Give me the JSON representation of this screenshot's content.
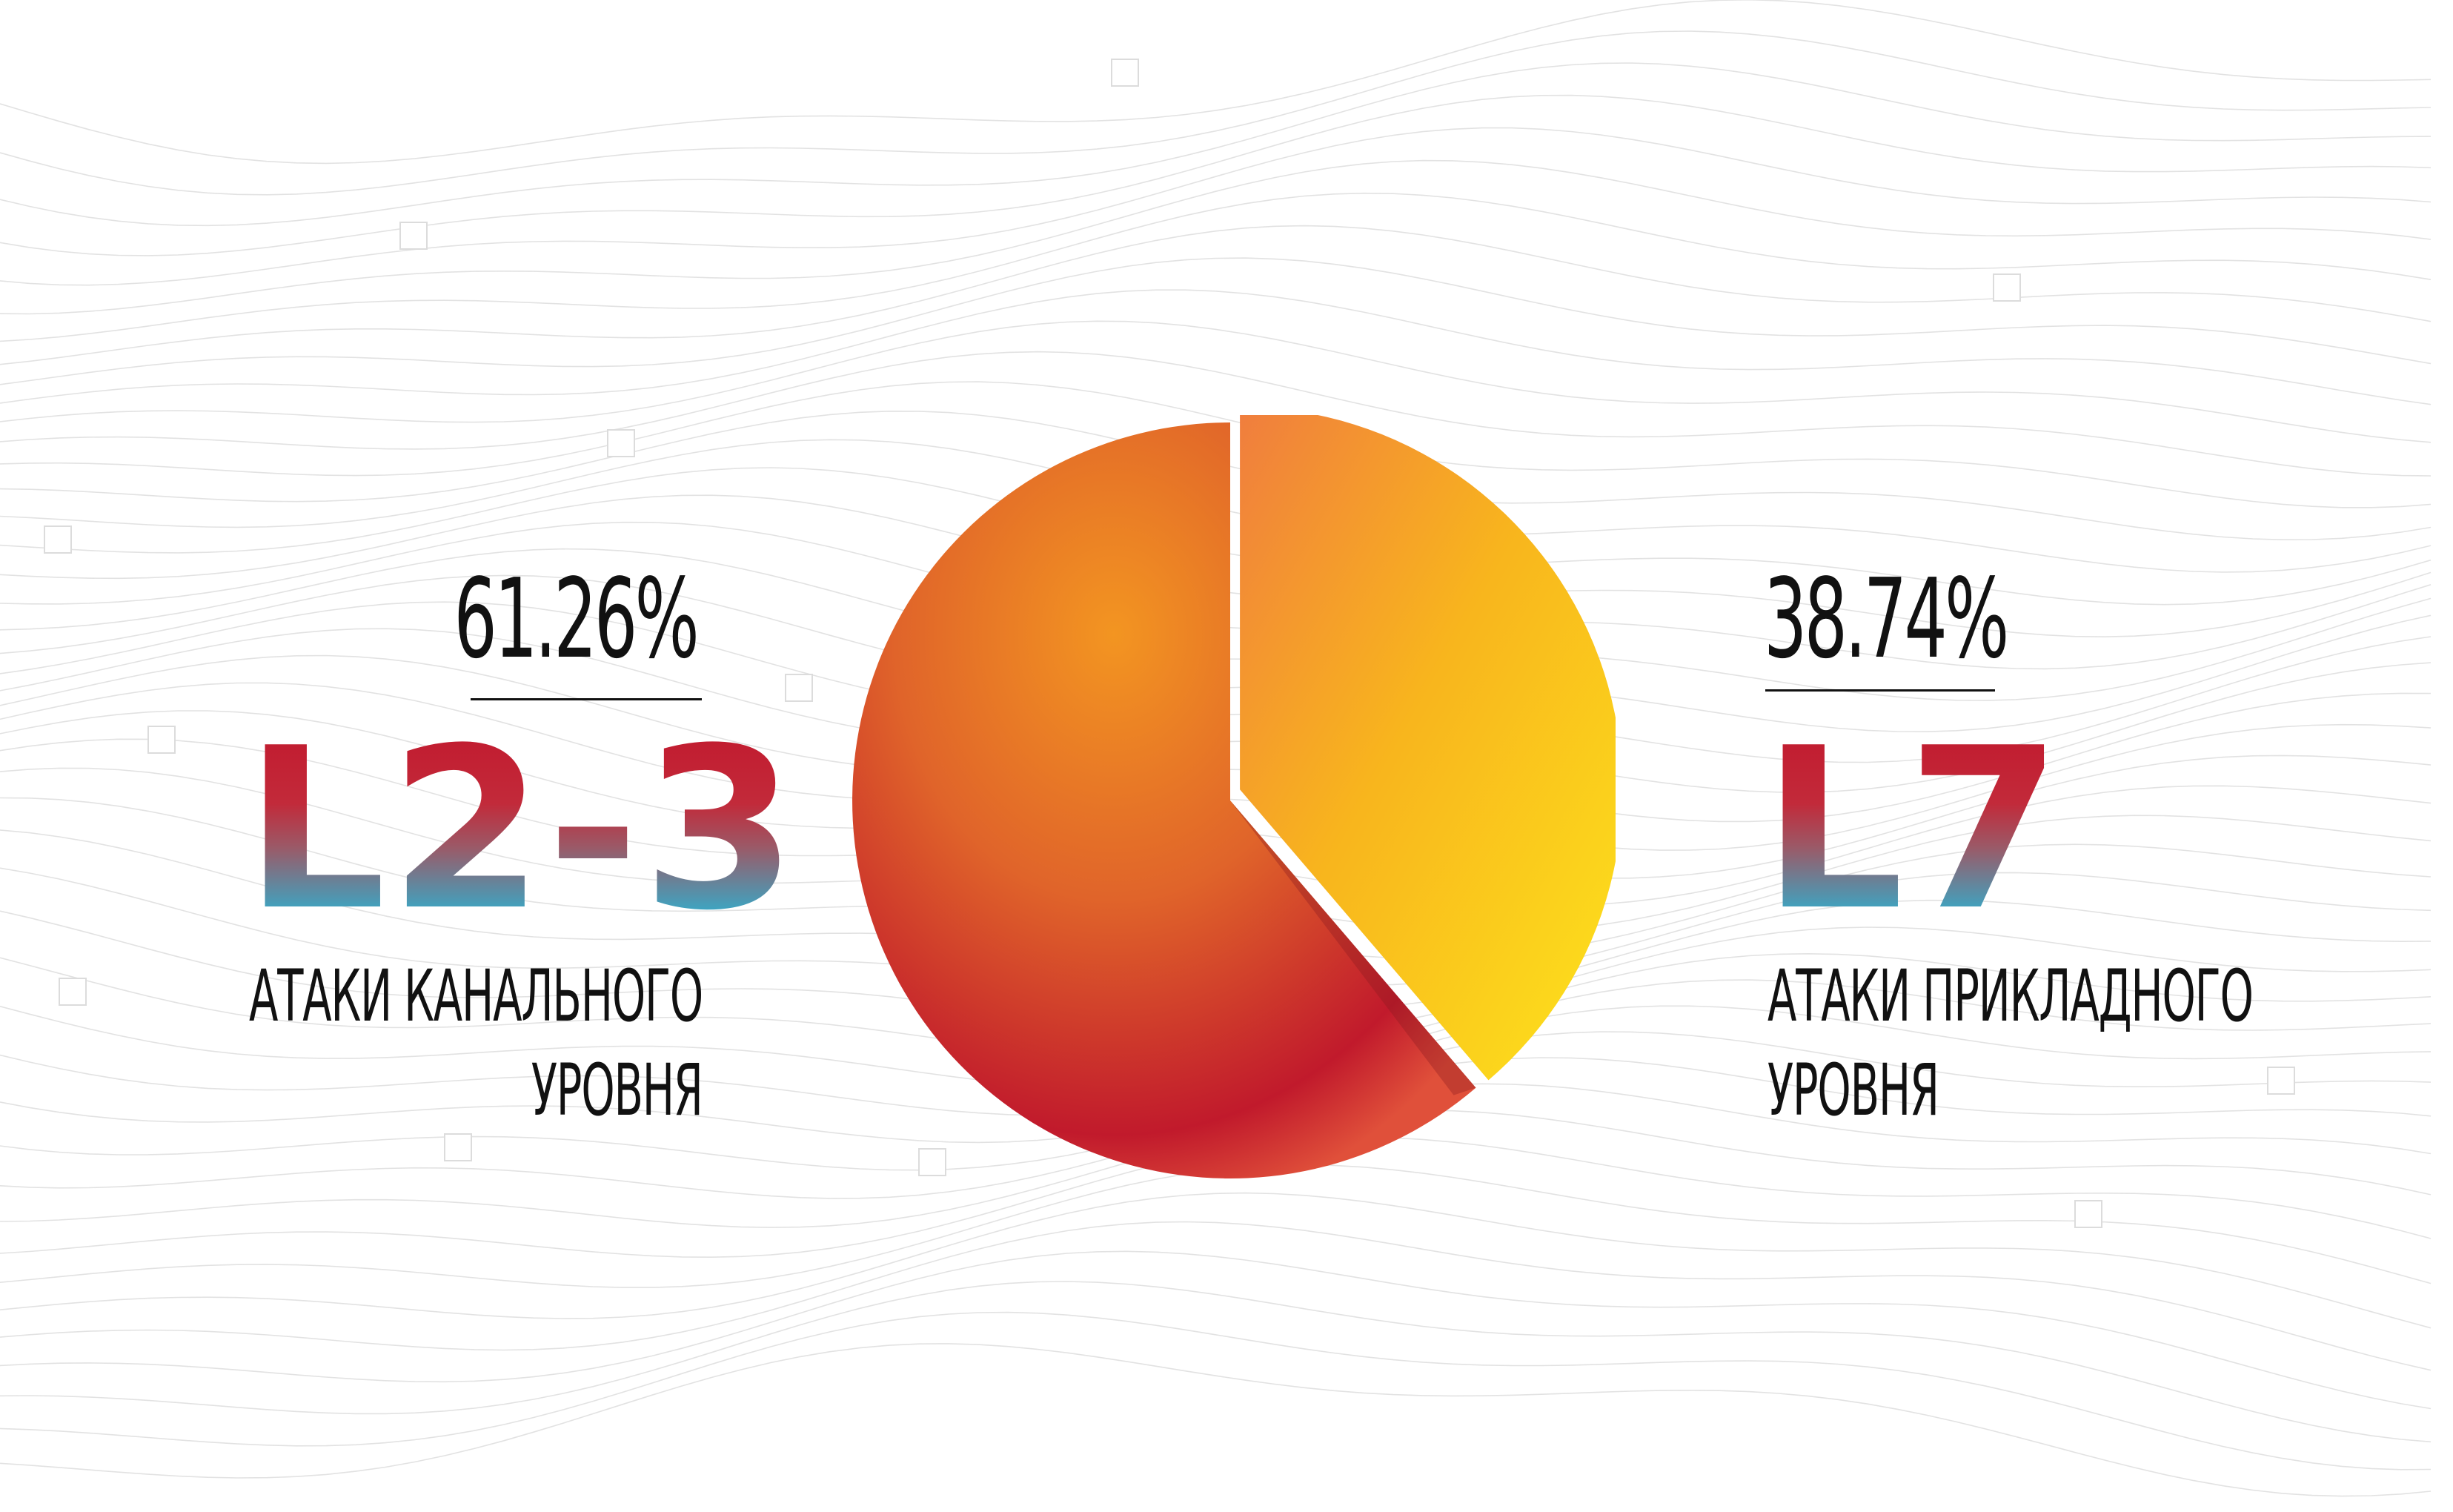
{
  "chart_data": {
    "type": "pie",
    "slices": [
      {
        "label": "L2-3",
        "value": 61.26,
        "value_label": "61.26%",
        "description_line1": "АТАКИ КАНАЛЬНОГО",
        "description_line2": "УРОВНЯ",
        "colors": [
          "#f29320",
          "#e0642a",
          "#c0182b"
        ]
      },
      {
        "label": "L7",
        "value": 38.74,
        "value_label": "38.74%",
        "description_line1": "АТАКИ ПРИКЛАДНОГО",
        "description_line2": "УРОВНЯ",
        "colors": [
          "#f08a3c",
          "#f9b81c",
          "#fde11c"
        ]
      }
    ],
    "legend": "sides"
  }
}
